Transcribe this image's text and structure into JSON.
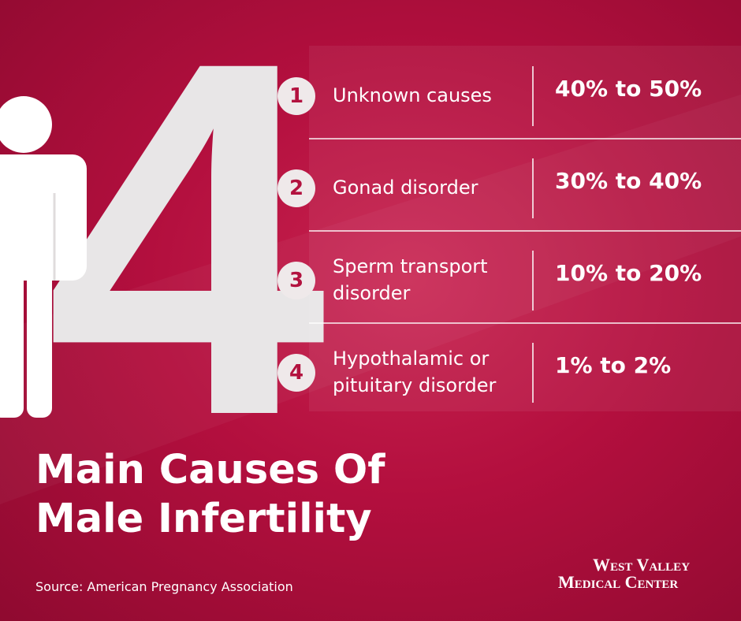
{
  "big_number": "4",
  "rows": [
    {
      "number": "1",
      "cause": "Unknown causes",
      "range": "40% to 50%"
    },
    {
      "number": "2",
      "cause": "Gonad disorder",
      "range": "30% to 40%"
    },
    {
      "number": "3",
      "cause": "Sperm transport disorder",
      "range": "10% to 20%"
    },
    {
      "number": "4",
      "cause": "Hypothalamic or pituitary disorder",
      "range": "1% to 2%"
    }
  ],
  "title_lines": [
    "Main Causes Of",
    "Male Infertility"
  ],
  "source": "Source: American Pregnancy Association",
  "logo": {
    "line1": "West Valley",
    "line2": "Medical Center"
  }
}
